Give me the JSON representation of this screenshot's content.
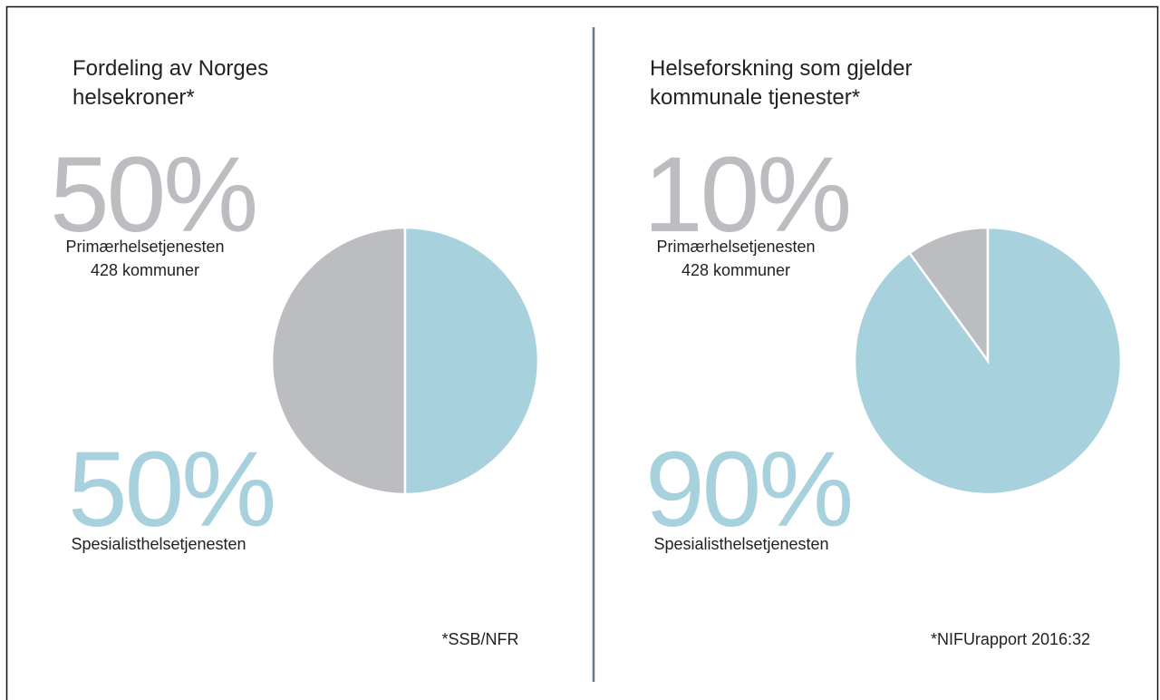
{
  "chart_data": [
    {
      "type": "pie",
      "title_lines": [
        "Fordeling av Norges",
        "helsekroner*"
      ],
      "source": "*SSB/NFR",
      "slices": [
        {
          "name": "Primærhelsetjenesten",
          "note": "428 kommuner",
          "value": 50,
          "value_label": "50%",
          "color": "#bcbdc1"
        },
        {
          "name": "Spesialisthelsetjenesten",
          "value": 50,
          "value_label": "50%",
          "color": "#a7d1dc"
        }
      ]
    },
    {
      "type": "pie",
      "title_lines": [
        "Helseforskning som gjelder",
        "kommunale tjenester*"
      ],
      "source": "*NIFUrapport 2016:32",
      "slices": [
        {
          "name": "Primærhelsetjenesten",
          "note": "428 kommuner",
          "value": 10,
          "value_label": "10%",
          "color": "#bcbdc1"
        },
        {
          "name": "Spesialisthelsetjenesten",
          "value": 90,
          "value_label": "90%",
          "color": "#a7d1dc"
        }
      ]
    }
  ]
}
